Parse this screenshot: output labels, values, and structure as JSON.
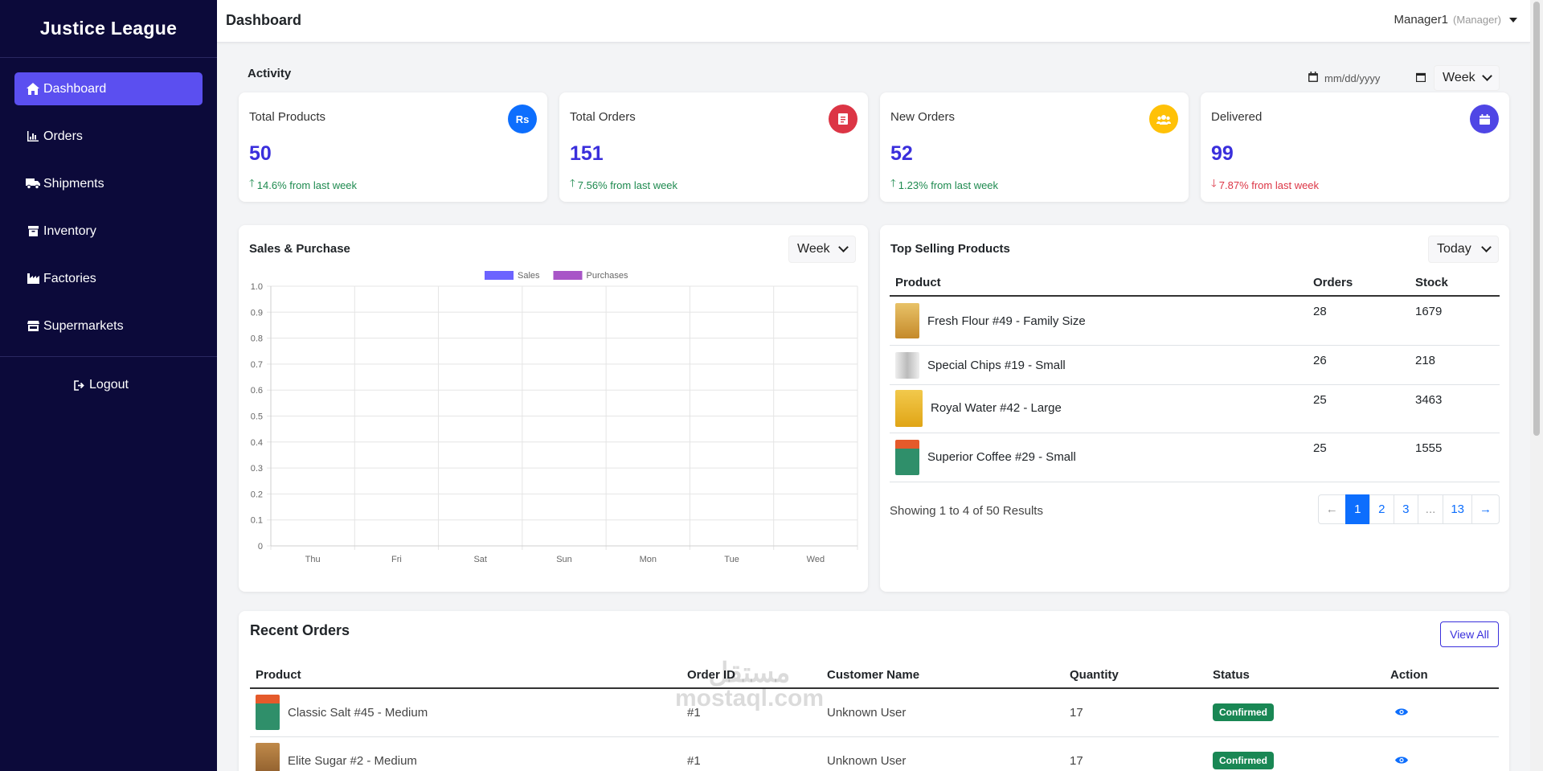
{
  "app": {
    "brand": "Justice League"
  },
  "sidebar": {
    "items": [
      {
        "label": "Dashboard",
        "icon": "home-icon",
        "active": true
      },
      {
        "label": "Orders",
        "icon": "chart-bar-icon"
      },
      {
        "label": "Shipments",
        "icon": "truck-icon"
      },
      {
        "label": "Inventory",
        "icon": "box-icon"
      },
      {
        "label": "Factories",
        "icon": "factory-icon"
      },
      {
        "label": "Supermarkets",
        "icon": "store-icon"
      }
    ],
    "logout": "Logout"
  },
  "header": {
    "title": "Dashboard",
    "user": "Manager1",
    "role": "(Manager)"
  },
  "activity": {
    "title": "Activity",
    "date_placeholder": "mm/dd/yyyy",
    "period": "Week",
    "cards": [
      {
        "label": "Total Products",
        "value": "50",
        "change": "14.6% from last week",
        "direction": "up",
        "icon": "rupee-icon",
        "icon_text": "Rs",
        "color": "#0d6efd"
      },
      {
        "label": "Total Orders",
        "value": "151",
        "change": "7.56% from last week",
        "direction": "up",
        "icon": "receipt-icon",
        "color": "#dc3545"
      },
      {
        "label": "New Orders",
        "value": "52",
        "change": "1.23% from last week",
        "direction": "up",
        "icon": "users-icon",
        "color": "#ffc107"
      },
      {
        "label": "Delivered",
        "value": "99",
        "change": "7.87% from last week",
        "direction": "down",
        "icon": "calendar-icon",
        "color": "#4f46e5"
      }
    ]
  },
  "sales_panel": {
    "title": "Sales & Purchase",
    "period": "Week"
  },
  "chart_data": {
    "type": "bar",
    "categories": [
      "Thu",
      "Fri",
      "Sat",
      "Sun",
      "Mon",
      "Tue",
      "Wed"
    ],
    "series": [
      {
        "name": "Sales",
        "color": "#6c63ff",
        "values": [
          0,
          0,
          0,
          0,
          0,
          0,
          0
        ]
      },
      {
        "name": "Purchases",
        "color": "#a855c7",
        "values": [
          0,
          0,
          0,
          0,
          0,
          0,
          0
        ]
      }
    ],
    "yticks": [
      "0",
      "0.1",
      "0.2",
      "0.3",
      "0.4",
      "0.5",
      "0.6",
      "0.7",
      "0.8",
      "0.9",
      "1.0"
    ],
    "ylim": [
      0,
      1
    ],
    "grid": true,
    "legend": "top-center"
  },
  "top_selling": {
    "title": "Top Selling Products",
    "period": "Today",
    "columns": [
      "Product",
      "Orders",
      "Stock"
    ],
    "rows": [
      {
        "product": "Fresh Flour #49 - Family Size",
        "orders": "28",
        "stock": "1679",
        "thumb": "#d9a441"
      },
      {
        "product": "Special Chips #19 - Small",
        "orders": "26",
        "stock": "218",
        "thumb": "#cfcfcf"
      },
      {
        "product": "Royal Water #42 - Large",
        "orders": "25",
        "stock": "3463",
        "thumb": "#e9b52a"
      },
      {
        "product": "Superior Coffee #29 - Small",
        "orders": "25",
        "stock": "1555",
        "thumb": "#2f8f6a"
      }
    ],
    "showing": "Showing 1 to 4 of 50 Results",
    "pages": [
      "←",
      "1",
      "2",
      "3",
      "...",
      "13",
      "→"
    ]
  },
  "recent_orders": {
    "title": "Recent Orders",
    "view_all": "View All",
    "columns": [
      "Product",
      "Order ID",
      "Customer Name",
      "Quantity",
      "Status",
      "Action"
    ],
    "rows": [
      {
        "product": "Classic Salt #45 - Medium",
        "order_id": "#1",
        "customer": "Unknown User",
        "quantity": "17",
        "status": "Confirmed",
        "thumb": "#2f8f6a"
      },
      {
        "product": "Elite Sugar #2 - Medium",
        "order_id": "#1",
        "customer": "Unknown User",
        "quantity": "17",
        "status": "Confirmed",
        "thumb": "#c08a4a"
      }
    ]
  },
  "watermark": {
    "line1": "مستقل",
    "line2": "mostaql.com"
  }
}
